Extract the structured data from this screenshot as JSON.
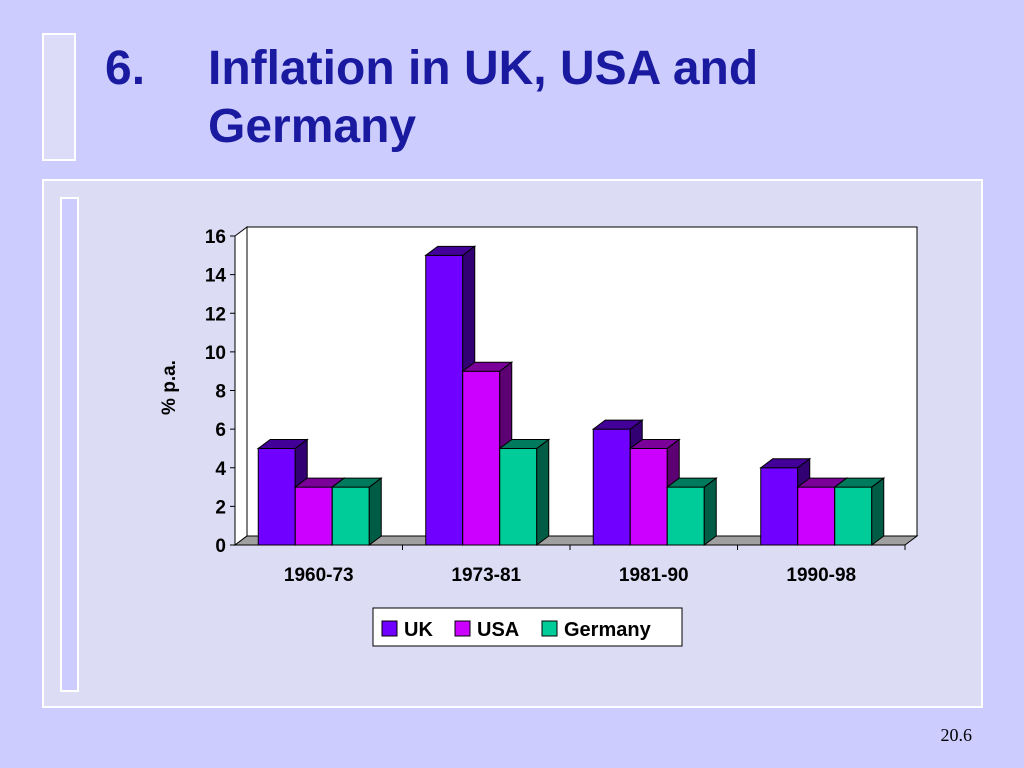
{
  "slide": {
    "title_number": "6.",
    "title_text": "Inflation in UK, USA and Germany",
    "slide_number": "20.6"
  },
  "colors": {
    "background": "#ccccff",
    "title": "#1a1aa0",
    "uk": "#7000ff",
    "usa": "#cc00ff",
    "germany": "#00cc99"
  },
  "chart_data": {
    "type": "bar",
    "title": "",
    "xlabel": "",
    "ylabel": "% p.a.",
    "ylim": [
      0,
      16
    ],
    "yticks": [
      0,
      2,
      4,
      6,
      8,
      10,
      12,
      14,
      16
    ],
    "categories": [
      "1960-73",
      "1973-81",
      "1981-90",
      "1990-98"
    ],
    "series": [
      {
        "name": "UK",
        "values": [
          5,
          15,
          6,
          4
        ]
      },
      {
        "name": "USA",
        "values": [
          3,
          9,
          5,
          3
        ]
      },
      {
        "name": "Germany",
        "values": [
          3,
          5,
          3,
          3
        ]
      }
    ],
    "legend_position": "bottom",
    "style": "3d-clustered-column",
    "grid": false
  }
}
